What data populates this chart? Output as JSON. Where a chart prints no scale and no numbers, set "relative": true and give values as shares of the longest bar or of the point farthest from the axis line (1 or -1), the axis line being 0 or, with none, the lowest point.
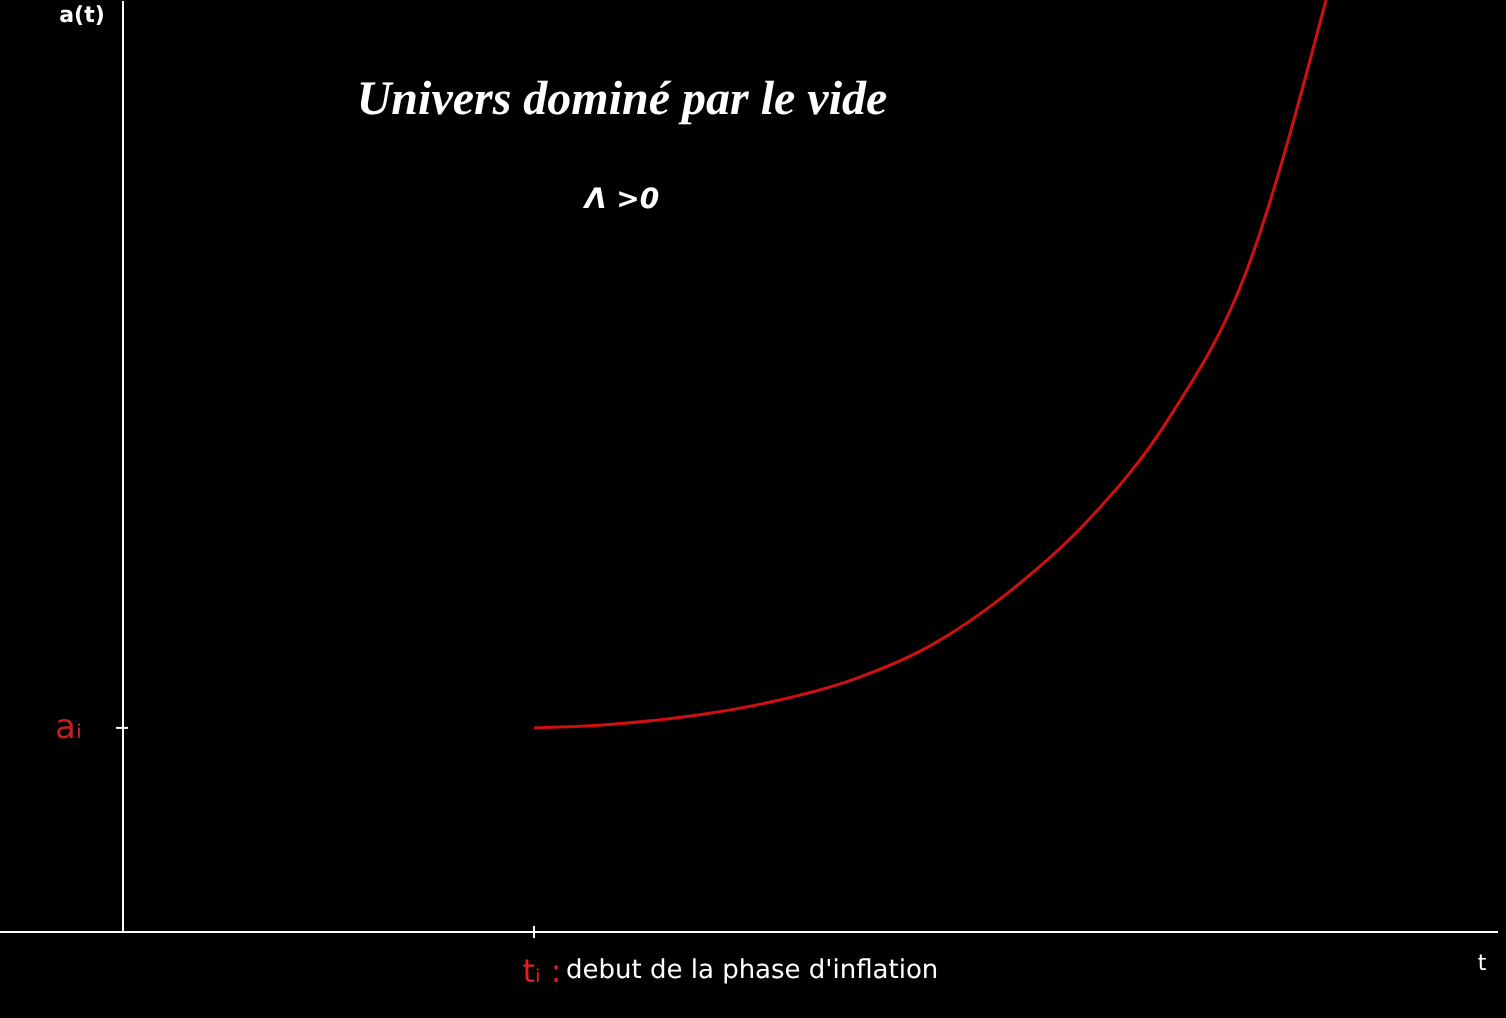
{
  "chart_data": {
    "type": "line",
    "title": "Univers dominé par le vide",
    "subtitle": "Λ >0",
    "relative": true,
    "categories": [
      null,
      null,
      null,
      null,
      null,
      null,
      null,
      null,
      null,
      null,
      null
    ],
    "series": [
      {
        "color": "#d01010",
        "values": [
          0.219,
          0.223,
          0.232,
          0.247,
          0.27,
          0.307,
          0.365,
          0.442,
          0.549,
          0.71,
          1.0
        ]
      }
    ],
    "annotations": [
      "tᵢ :",
      "debut de la phase d'inflation",
      "aᵢ",
      "a(t)",
      "t"
    ],
    "grid": false,
    "marker": "none",
    "line_style": "solid"
  }
}
